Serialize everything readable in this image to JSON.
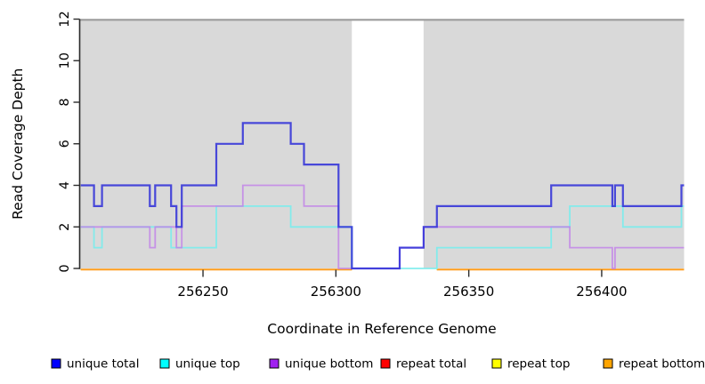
{
  "chart_data": {
    "type": "line",
    "subtype": "step-coverage",
    "xlabel": "Coordinate in Reference Genome",
    "ylabel": "Read Coverage Depth",
    "xlim": [
      256203.6,
      256431
    ],
    "ylim": [
      0,
      12
    ],
    "x_ticks": [
      256250,
      256300,
      256350,
      256400
    ],
    "y_ticks": [
      0,
      2,
      4,
      6,
      8,
      10,
      12
    ],
    "grid": false,
    "plot_bg": "#ffffff",
    "shaded_regions": [
      {
        "name": "repeat-region-left",
        "x0": 256203.6,
        "x1": 256306,
        "color": "#d9d9d9"
      },
      {
        "name": "repeat-region-right",
        "x0": 256333,
        "x1": 256431,
        "color": "#d9d9d9"
      }
    ],
    "top_border_color": "#9c9c9c",
    "axis_color": "#2b2b2b",
    "series": [
      {
        "name": "unique total",
        "color": "#3232d8",
        "opacity": 0.88,
        "width": 2.2,
        "steps": [
          [
            256204,
            4
          ],
          [
            256209,
            3
          ],
          [
            256212,
            4
          ],
          [
            256230,
            3
          ],
          [
            256232,
            4
          ],
          [
            256238,
            3
          ],
          [
            256240,
            2
          ],
          [
            256242,
            4
          ],
          [
            256255,
            6
          ],
          [
            256265,
            7
          ],
          [
            256283,
            6
          ],
          [
            256288,
            5
          ],
          [
            256301,
            2
          ],
          [
            256306,
            0
          ],
          [
            256324,
            1
          ],
          [
            256333,
            2
          ],
          [
            256338,
            3
          ],
          [
            256381,
            4
          ],
          [
            256404,
            3
          ],
          [
            256405,
            4
          ],
          [
            256408,
            3
          ],
          [
            256430,
            4
          ]
        ],
        "x_end": 256431
      },
      {
        "name": "unique top",
        "color": "#7ceded",
        "opacity": 0.92,
        "width": 1.8,
        "steps": [
          [
            256204,
            2
          ],
          [
            256209,
            1
          ],
          [
            256212,
            2
          ],
          [
            256238,
            1
          ],
          [
            256255,
            3
          ],
          [
            256283,
            2
          ],
          [
            256306,
            0
          ],
          [
            256338,
            1
          ],
          [
            256381,
            2
          ],
          [
            256388,
            3
          ],
          [
            256408,
            2
          ],
          [
            256430,
            3
          ]
        ],
        "x_end": 256431
      },
      {
        "name": "unique bottom",
        "color": "#c07fe8",
        "opacity": 0.8,
        "width": 1.8,
        "steps": [
          [
            256204,
            2
          ],
          [
            256230,
            1
          ],
          [
            256232,
            2
          ],
          [
            256240,
            1
          ],
          [
            256242,
            3
          ],
          [
            256265,
            4
          ],
          [
            256288,
            3
          ],
          [
            256301,
            0
          ],
          [
            256324,
            1
          ],
          [
            256333,
            2
          ],
          [
            256388,
            1
          ],
          [
            256404,
            0
          ],
          [
            256405,
            1
          ]
        ],
        "x_end": 256431
      },
      {
        "name": "repeat total",
        "color": "#cc0000",
        "opacity": 1,
        "width": 1.5,
        "value": 0,
        "segments": [
          [
            256204,
            256306
          ],
          [
            256338,
            256431
          ]
        ]
      },
      {
        "name": "repeat top",
        "color": "#ffff00",
        "opacity": 1,
        "width": 1.5,
        "value": 0,
        "segments": [
          [
            256204,
            256306
          ],
          [
            256338,
            256431
          ]
        ]
      },
      {
        "name": "repeat bottom",
        "color": "#ff9d1e",
        "opacity": 1,
        "width": 2.0,
        "value": 0,
        "segments": [
          [
            256204,
            256306
          ],
          [
            256338,
            256431
          ]
        ]
      }
    ]
  },
  "legend": {
    "items": [
      {
        "label": "unique total",
        "swatch_color": "#0000ff"
      },
      {
        "label": "unique top",
        "swatch_color": "#00ffff"
      },
      {
        "label": "unique bottom",
        "swatch_color": "#a020f0"
      },
      {
        "label": "repeat total",
        "swatch_color": "#ff0000"
      },
      {
        "label": "repeat top",
        "swatch_color": "#ffff00"
      },
      {
        "label": "repeat bottom",
        "swatch_color": "#ffa500"
      }
    ]
  }
}
